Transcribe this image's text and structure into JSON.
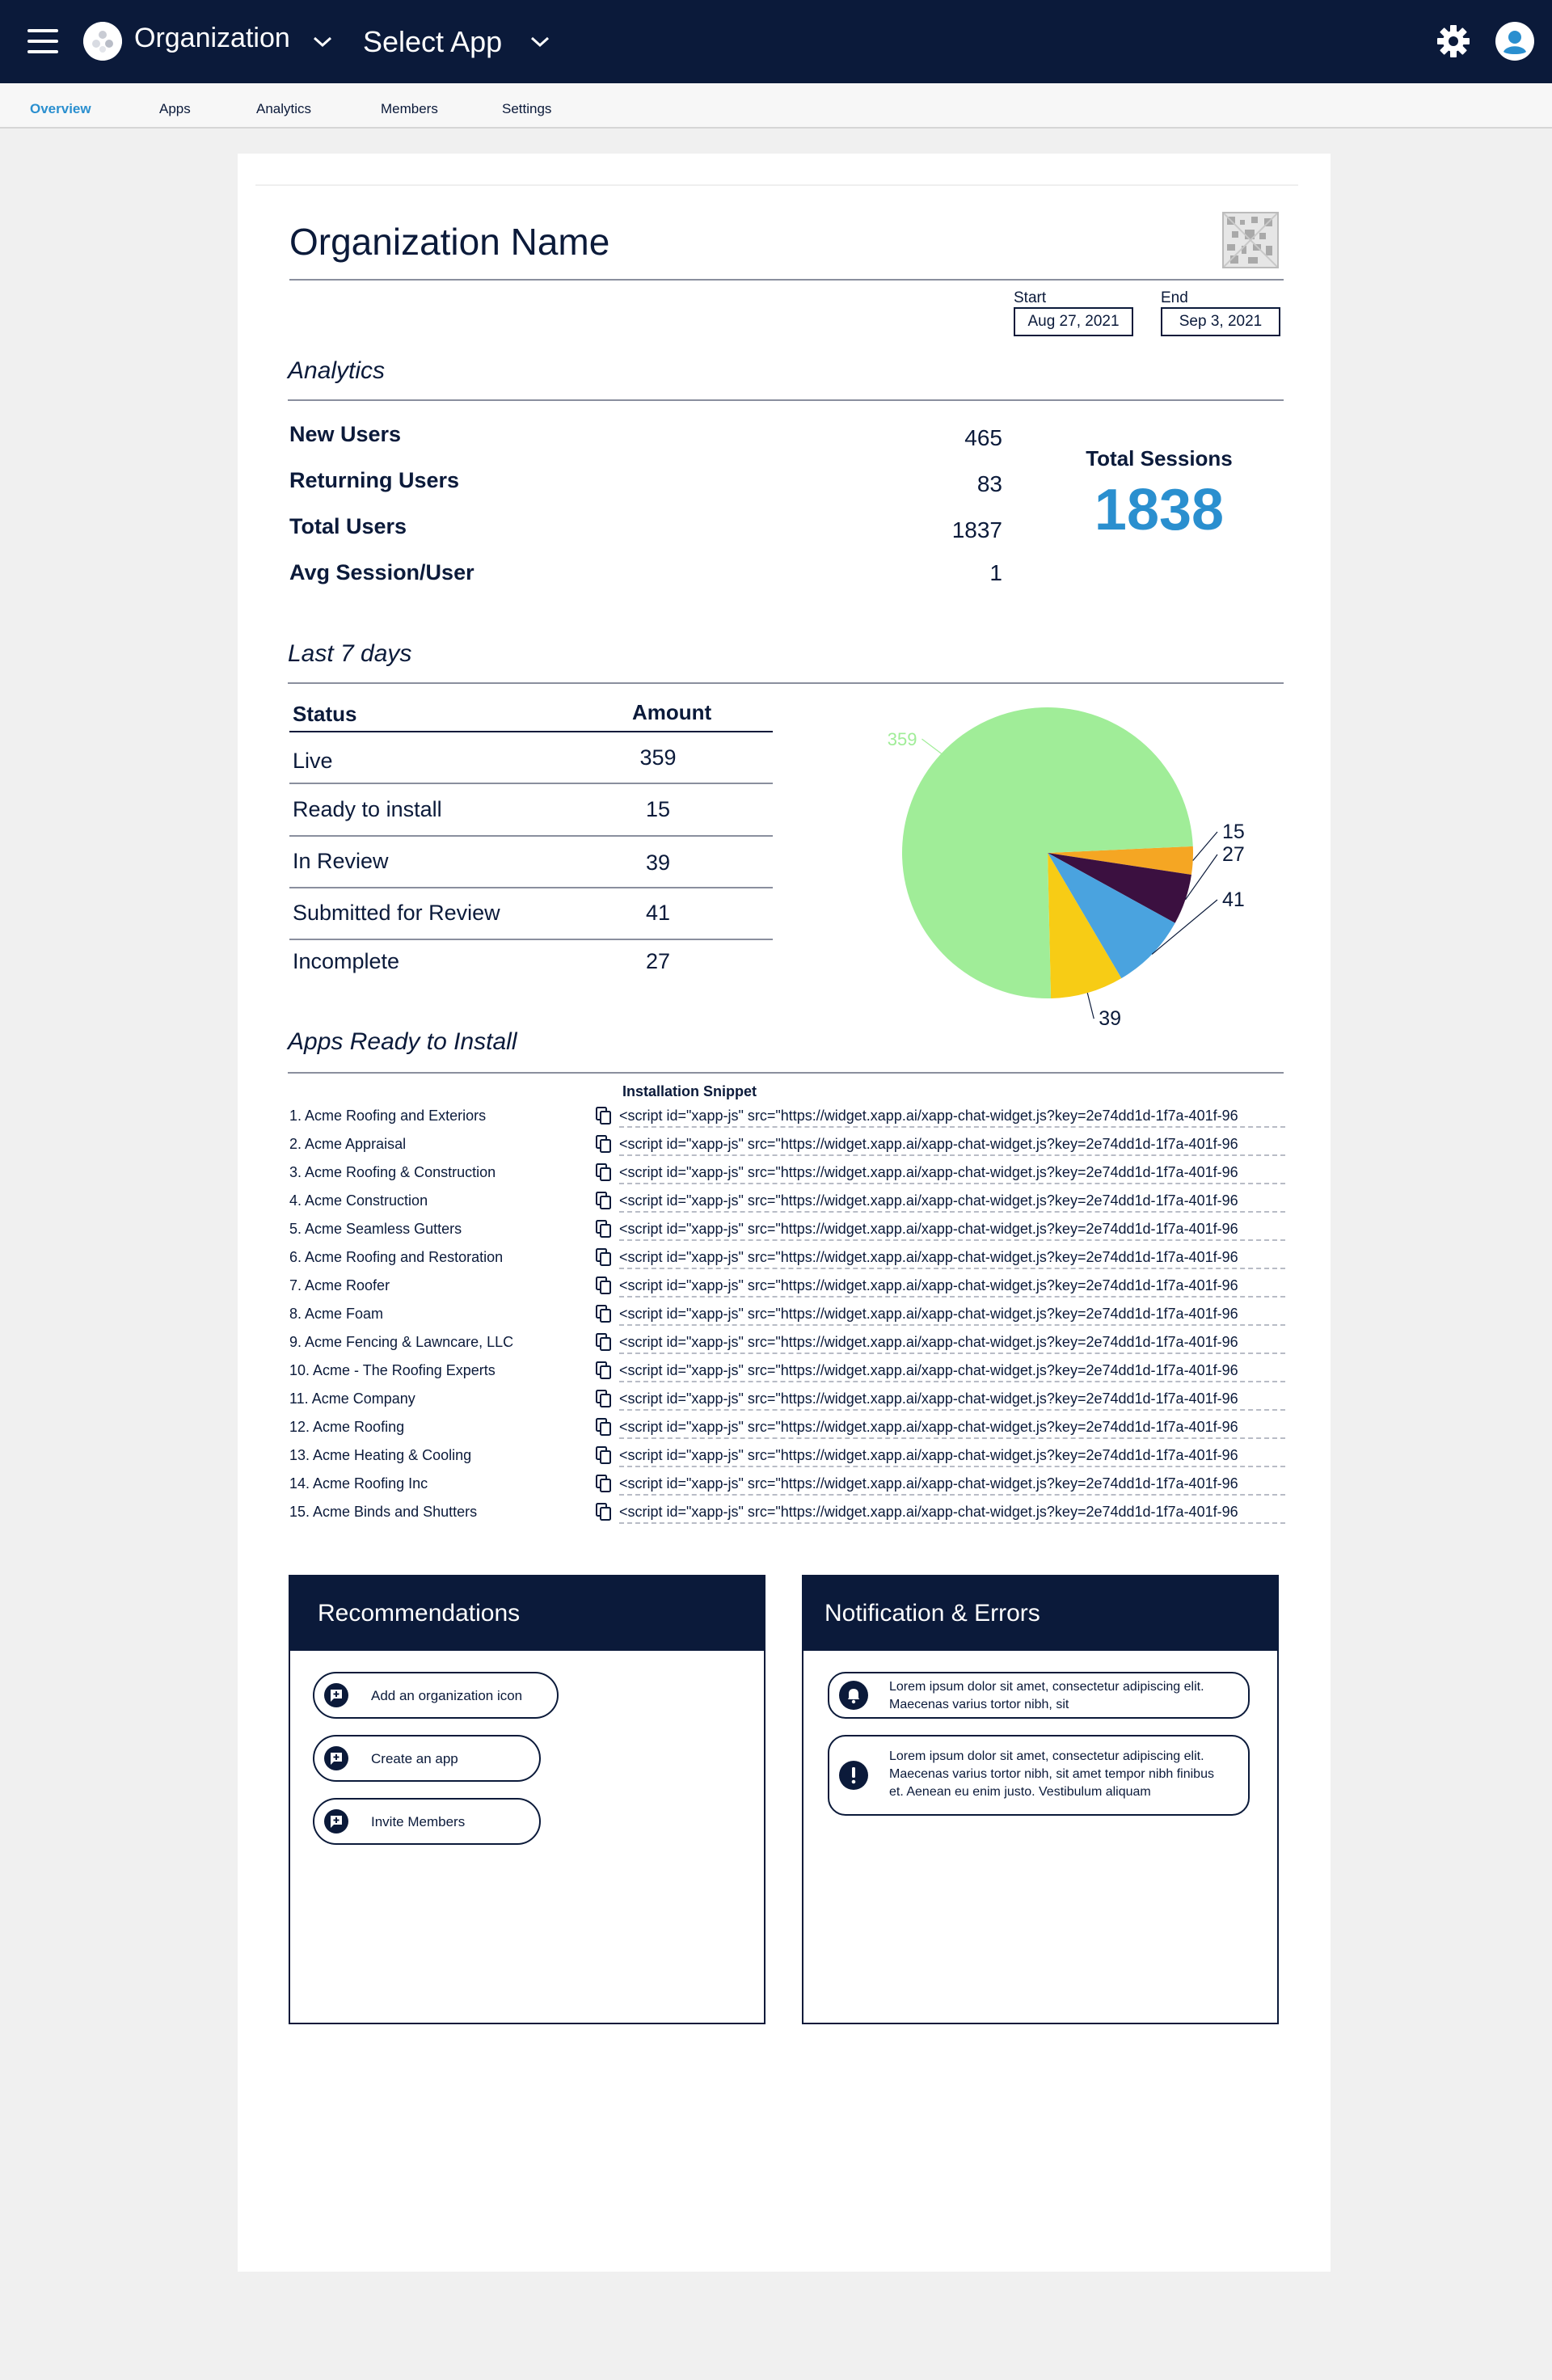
{
  "header": {
    "org_name": "Organization",
    "select_app": "Select App"
  },
  "tabs": [
    {
      "label": "Overview",
      "active": true
    },
    {
      "label": "Apps"
    },
    {
      "label": "Analytics"
    },
    {
      "label": "Members"
    },
    {
      "label": "Settings"
    }
  ],
  "page": {
    "title": "Organization Name",
    "start_label": "Start",
    "start_date": "Aug 27, 2021",
    "end_label": "End",
    "end_date": "Sep 3, 2021"
  },
  "analytics": {
    "heading": "Analytics",
    "metrics": [
      {
        "label": "New Users",
        "value": "465"
      },
      {
        "label": "Returning Users",
        "value": "83"
      },
      {
        "label": "Total Users",
        "value": "1837"
      },
      {
        "label": "Avg Session/User",
        "value": "1"
      }
    ],
    "total_sessions_label": "Total Sessions",
    "total_sessions_value": "1838"
  },
  "last7": {
    "heading": "Last 7 days",
    "col_status": "Status",
    "col_amount": "Amount",
    "rows": [
      {
        "status": "Live",
        "amount": "359"
      },
      {
        "status": "Ready to install",
        "amount": "15"
      },
      {
        "status": "In Review",
        "amount": "39"
      },
      {
        "status": "Submitted for Review",
        "amount": "41"
      },
      {
        "status": "Incomplete",
        "amount": "27"
      }
    ]
  },
  "chart_data": {
    "type": "pie",
    "title": "",
    "slices": [
      {
        "label": "359",
        "value": 359,
        "color": "#a0ed98"
      },
      {
        "label": "15",
        "value": 15,
        "color": "#f5a623"
      },
      {
        "label": "27",
        "value": 27,
        "color": "#3b1040"
      },
      {
        "label": "41",
        "value": 41,
        "color": "#4aa3df"
      },
      {
        "label": "39",
        "value": 39,
        "color": "#f7cc15"
      }
    ]
  },
  "apps_ready": {
    "heading": "Apps Ready to Install",
    "snippet_header": "Installation Snippet",
    "items": [
      {
        "name": "1. Acme Roofing and Exteriors",
        "snippet": "<script id=\"xapp-js\" src=\"https://widget.xapp.ai/xapp-chat-widget.js?key=2e74dd1d-1f7a-401f-96"
      },
      {
        "name": "2. Acme Appraisal",
        "snippet": "<script id=\"xapp-js\" src=\"https://widget.xapp.ai/xapp-chat-widget.js?key=2e74dd1d-1f7a-401f-96"
      },
      {
        "name": "3. Acme Roofing & Construction",
        "snippet": "<script id=\"xapp-js\" src=\"https://widget.xapp.ai/xapp-chat-widget.js?key=2e74dd1d-1f7a-401f-96"
      },
      {
        "name": "4. Acme Construction",
        "snippet": "<script id=\"xapp-js\" src=\"https://widget.xapp.ai/xapp-chat-widget.js?key=2e74dd1d-1f7a-401f-96"
      },
      {
        "name": "5. Acme Seamless Gutters",
        "snippet": "<script id=\"xapp-js\" src=\"https://widget.xapp.ai/xapp-chat-widget.js?key=2e74dd1d-1f7a-401f-96"
      },
      {
        "name": "6. Acme Roofing and Restoration",
        "snippet": "<script id=\"xapp-js\" src=\"https://widget.xapp.ai/xapp-chat-widget.js?key=2e74dd1d-1f7a-401f-96"
      },
      {
        "name": "7. Acme Roofer",
        "snippet": "<script id=\"xapp-js\" src=\"https://widget.xapp.ai/xapp-chat-widget.js?key=2e74dd1d-1f7a-401f-96"
      },
      {
        "name": "8. Acme Foam",
        "snippet": "<script id=\"xapp-js\" src=\"https://widget.xapp.ai/xapp-chat-widget.js?key=2e74dd1d-1f7a-401f-96"
      },
      {
        "name": "9. Acme Fencing & Lawncare, LLC",
        "snippet": "<script id=\"xapp-js\" src=\"https://widget.xapp.ai/xapp-chat-widget.js?key=2e74dd1d-1f7a-401f-96"
      },
      {
        "name": "10. Acme - The Roofing Experts",
        "snippet": "<script id=\"xapp-js\" src=\"https://widget.xapp.ai/xapp-chat-widget.js?key=2e74dd1d-1f7a-401f-96"
      },
      {
        "name": "11. Acme Company",
        "snippet": "<script id=\"xapp-js\" src=\"https://widget.xapp.ai/xapp-chat-widget.js?key=2e74dd1d-1f7a-401f-96"
      },
      {
        "name": "12. Acme Roofing",
        "snippet": "<script id=\"xapp-js\" src=\"https://widget.xapp.ai/xapp-chat-widget.js?key=2e74dd1d-1f7a-401f-96"
      },
      {
        "name": "13. Acme Heating & Cooling",
        "snippet": "<script id=\"xapp-js\" src=\"https://widget.xapp.ai/xapp-chat-widget.js?key=2e74dd1d-1f7a-401f-96"
      },
      {
        "name": "14. Acme Roofing Inc",
        "snippet": "<script id=\"xapp-js\" src=\"https://widget.xapp.ai/xapp-chat-widget.js?key=2e74dd1d-1f7a-401f-96"
      },
      {
        "name": "15. Acme Binds and Shutters",
        "snippet": "<script id=\"xapp-js\" src=\"https://widget.xapp.ai/xapp-chat-widget.js?key=2e74dd1d-1f7a-401f-96"
      }
    ]
  },
  "recommendations": {
    "heading": "Recommendations",
    "items": [
      {
        "label": "Add an organization icon"
      },
      {
        "label": "Create an app"
      },
      {
        "label": "Invite Members"
      }
    ]
  },
  "notifications": {
    "heading": "Notification & Errors",
    "items": [
      {
        "icon": "bell-icon",
        "text": "Lorem ipsum dolor sit amet, consectetur adipiscing elit. Maecenas varius tortor nibh, sit"
      },
      {
        "icon": "exclamation-icon",
        "text": "Lorem ipsum dolor sit amet, consectetur adipiscing elit. Maecenas varius tortor nibh, sit amet tempor nibh finibus et. Aenean eu enim justo. Vestibulum aliquam"
      }
    ]
  },
  "colors": {
    "navy": "#0b1a3a",
    "accent": "#2a8fcf"
  }
}
